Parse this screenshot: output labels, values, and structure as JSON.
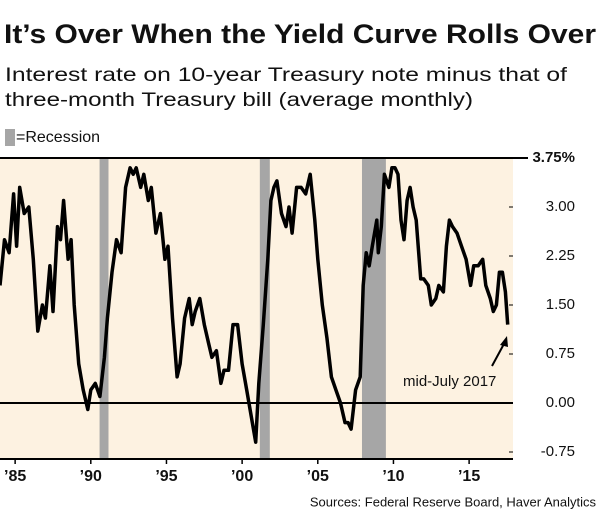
{
  "chart_data": {
    "type": "line",
    "title": "It’s Over When the Yield Curve Rolls Over",
    "subtitle": [
      "Interest rate on 10-year Treasury note minus that of",
      "three-month Treasury bill (average monthly)"
    ],
    "legend": "=Recession",
    "recession_color": "#a6a6a6",
    "recessions": [
      [
        1990.58,
        1991.17
      ],
      [
        2001.17,
        2001.83
      ],
      [
        2007.92,
        2009.5
      ]
    ],
    "annotation": "mid-July 2017",
    "source": "Sources: Federal Reserve Board, Haver Analytics",
    "color": "#000000",
    "x": [
      1984.0,
      1984.3,
      1984.6,
      1984.9,
      1985.1,
      1985.3,
      1985.6,
      1985.9,
      1986.2,
      1986.5,
      1986.8,
      1987.0,
      1987.3,
      1987.5,
      1987.8,
      1988.0,
      1988.2,
      1988.5,
      1988.7,
      1988.9,
      1989.2,
      1989.5,
      1989.8,
      1990.0,
      1990.3,
      1990.6,
      1990.9,
      1991.1,
      1991.4,
      1991.7,
      1992.0,
      1992.3,
      1992.6,
      1992.8,
      1993.0,
      1993.3,
      1993.5,
      1993.8,
      1994.0,
      1994.3,
      1994.6,
      1994.9,
      1995.1,
      1995.4,
      1995.7,
      1995.9,
      1996.2,
      1996.5,
      1996.7,
      1996.9,
      1997.2,
      1997.5,
      1997.8,
      1998.0,
      1998.3,
      1998.6,
      1998.8,
      1999.1,
      1999.4,
      1999.7,
      2000.0,
      2000.3,
      2000.6,
      2000.9,
      2001.1,
      2001.4,
      2001.7,
      2001.9,
      2002.1,
      2002.3,
      2002.6,
      2002.9,
      2003.1,
      2003.3,
      2003.6,
      2003.9,
      2004.2,
      2004.5,
      2004.8,
      2005.0,
      2005.3,
      2005.6,
      2005.9,
      2006.2,
      2006.5,
      2006.8,
      2007.0,
      2007.2,
      2007.5,
      2007.8,
      2008.0,
      2008.2,
      2008.4,
      2008.6,
      2008.9,
      2009.0,
      2009.2,
      2009.4,
      2009.7,
      2009.9,
      2010.1,
      2010.3,
      2010.5,
      2010.7,
      2010.9,
      2011.1,
      2011.3,
      2011.5,
      2011.8,
      2012.0,
      2012.3,
      2012.5,
      2012.8,
      2013.0,
      2013.3,
      2013.5,
      2013.7,
      2013.9,
      2014.2,
      2014.5,
      2014.8,
      2015.1,
      2015.3,
      2015.6,
      2015.9,
      2016.1,
      2016.4,
      2016.6,
      2016.8,
      2017.0,
      2017.2,
      2017.4,
      2017.55
    ],
    "values": [
      1.8,
      2.5,
      2.3,
      3.2,
      2.4,
      3.3,
      2.9,
      3.0,
      2.2,
      1.1,
      1.5,
      1.3,
      2.1,
      1.4,
      2.7,
      2.5,
      3.1,
      2.2,
      2.5,
      1.5,
      0.6,
      0.2,
      -0.1,
      0.2,
      0.3,
      0.1,
      0.7,
      1.3,
      2.0,
      2.5,
      2.3,
      3.3,
      3.6,
      3.5,
      3.6,
      3.3,
      3.5,
      3.1,
      3.3,
      2.6,
      2.9,
      2.2,
      2.4,
      1.3,
      0.4,
      0.6,
      1.3,
      1.6,
      1.2,
      1.4,
      1.6,
      1.2,
      0.9,
      0.7,
      0.8,
      0.3,
      0.5,
      0.5,
      1.2,
      1.2,
      0.6,
      0.2,
      -0.2,
      -0.6,
      0.3,
      1.2,
      2.2,
      3.1,
      3.3,
      3.4,
      2.9,
      2.7,
      3.0,
      2.6,
      3.3,
      3.3,
      3.2,
      3.5,
      2.8,
      2.2,
      1.5,
      1.0,
      0.4,
      0.2,
      0.0,
      -0.3,
      -0.3,
      -0.4,
      0.2,
      0.4,
      1.8,
      2.3,
      2.1,
      2.4,
      2.8,
      2.3,
      2.7,
      3.5,
      3.3,
      3.6,
      3.6,
      3.5,
      2.8,
      2.5,
      3.1,
      3.3,
      3.0,
      2.8,
      1.9,
      1.9,
      1.8,
      1.5,
      1.6,
      1.8,
      1.7,
      2.4,
      2.8,
      2.7,
      2.6,
      2.4,
      2.2,
      1.8,
      2.1,
      2.1,
      2.2,
      1.8,
      1.6,
      1.4,
      1.5,
      2.0,
      2.0,
      1.7,
      1.2
    ],
    "xlim": [
      1984,
      2017.9
    ],
    "xticks": [
      {
        "value": 1985,
        "label": "’85"
      },
      {
        "value": 1990,
        "label": "’90"
      },
      {
        "value": 1995,
        "label": "’95"
      },
      {
        "value": 2000,
        "label": "’00"
      },
      {
        "value": 2005,
        "label": "’05"
      },
      {
        "value": 2010,
        "label": "’10"
      },
      {
        "value": 2015,
        "label": "’15"
      }
    ],
    "ylim": [
      -0.75,
      3.75
    ],
    "yticks": [
      {
        "value": -0.75,
        "label": "-0.75"
      },
      {
        "value": 0,
        "label": "0.00"
      },
      {
        "value": 0.75,
        "label": "0.75"
      },
      {
        "value": 1.5,
        "label": "1.50"
      },
      {
        "value": 2.25,
        "label": "2.25"
      },
      {
        "value": 3,
        "label": "3.00"
      },
      {
        "value": 3.75,
        "label": "3.75%"
      }
    ],
    "zero_line": 0
  }
}
